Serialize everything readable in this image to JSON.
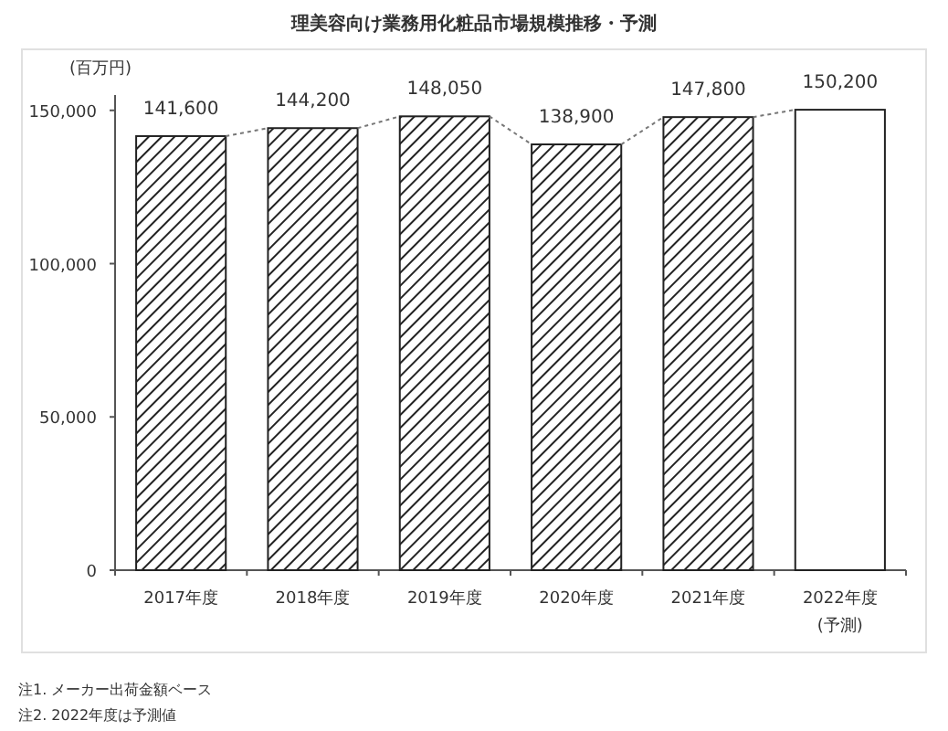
{
  "chart_data": {
    "type": "bar",
    "title": "理美容向け業務用化粧品市場規模推移・予測",
    "ylabel": "(百万円)",
    "categories": [
      "2017年度",
      "2018年度",
      "2019年度",
      "2020年度",
      "2021年度",
      "2022年度\n(予測)"
    ],
    "values": [
      141600,
      144200,
      148050,
      138900,
      147800,
      150200
    ],
    "colors": [
      "#222222",
      "#222222",
      "#222222",
      "#222222",
      "#222222",
      "#ffffff"
    ],
    "value_labels": [
      "141,600",
      "144,200",
      "148,050",
      "138,900",
      "147,800",
      "150,200"
    ],
    "ylim": [
      0,
      155000
    ],
    "yticks": [
      0,
      {
        "value": 50000,
        "label": "50,000"
      },
      {
        "value": 100000,
        "label": "100,000"
      },
      {
        "value": 150000,
        "label": "150,000"
      }
    ],
    "grid": false,
    "annotations": [
      "注1. メーカー出荷金額ベース",
      "注2. 2022年度は予測値"
    ]
  }
}
